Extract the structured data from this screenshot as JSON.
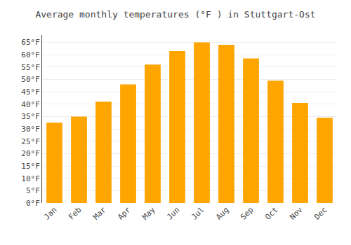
{
  "chart_data": {
    "type": "bar",
    "title": "Average monthly temperatures (°F ) in Stuttgart-Ost",
    "categories": [
      "Jan",
      "Feb",
      "Mar",
      "Apr",
      "May",
      "Jun",
      "Jul",
      "Aug",
      "Sep",
      "Oct",
      "Nov",
      "Dec"
    ],
    "values": [
      32.5,
      35.0,
      41.0,
      48.0,
      56.0,
      61.5,
      65.0,
      64.0,
      58.5,
      49.5,
      40.5,
      34.5
    ],
    "color": "#FFA500",
    "ylim": [
      0,
      68
    ],
    "yticks": [
      {
        "value": 0,
        "label": "0°F"
      },
      {
        "value": 5,
        "label": "5°F"
      },
      {
        "value": 10,
        "label": "10°F"
      },
      {
        "value": 15,
        "label": "15°F"
      },
      {
        "value": 20,
        "label": "20°F"
      },
      {
        "value": 25,
        "label": "25°F"
      },
      {
        "value": 30,
        "label": "30°F"
      },
      {
        "value": 35,
        "label": "35°F"
      },
      {
        "value": 40,
        "label": "40°F"
      },
      {
        "value": 45,
        "label": "45°F"
      },
      {
        "value": 50,
        "label": "50°F"
      },
      {
        "value": 55,
        "label": "55°F"
      },
      {
        "value": 60,
        "label": "60°F"
      },
      {
        "value": 65,
        "label": "65°F"
      }
    ],
    "grid": true
  }
}
